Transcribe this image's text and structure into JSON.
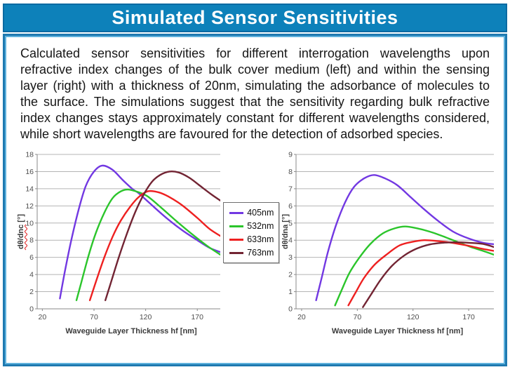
{
  "title_bar": {
    "title": "Simulated Sensor Sensitivities"
  },
  "description": "Calculated sensor sensitivities for different interrogation wavelengths upon refractive index changes of the bulk cover medium (left) and within the sensing layer (right) with a thickness of 20nm, simulating the adsorbance of molecules to the surface. The simulations suggest that the sensitivity regarding bulk refractive index changes stays approximately constant for different wavelengths considered, while short wavelengths are favoured for the detection of adsorbed species.",
  "colors": {
    "title_bar_blue": "#0d81ba",
    "frame_blue": "#1e79b0",
    "purple_405": "#7238e2",
    "green_532": "#2bc52b",
    "red_633": "#ee2020",
    "darkred_763": "#722433",
    "gridline_gray": "#b4b4b4",
    "axis_gray": "#8a8a8a"
  },
  "legend": {
    "items": [
      {
        "label": "405nm",
        "color": "#7238e2"
      },
      {
        "label": "532nm",
        "color": "#2bc52b"
      },
      {
        "label": "633nm",
        "color": "#ee2020"
      },
      {
        "label": "763nm",
        "color": "#722433"
      }
    ]
  },
  "chart_data": [
    {
      "type": "line",
      "position": "left",
      "title": "",
      "xlabel": "Waveguide Layer Thickness hf [nm]",
      "ylabel": "dθ/dnc [°]",
      "ylabel_decoration": "red-wavy-underline",
      "xlim": [
        15,
        197
      ],
      "ylim": [
        0,
        18
      ],
      "ytick_step": 2,
      "xticks": [
        20,
        70,
        120,
        170
      ],
      "grid": true,
      "legend_position": "between-charts",
      "series": [
        {
          "name": "405nm",
          "color": "#7238e2",
          "points": [
            [
              37,
              1.2
            ],
            [
              42,
              4.5
            ],
            [
              48,
              8.0
            ],
            [
              55,
              11.5
            ],
            [
              62,
              14.3
            ],
            [
              70,
              16.0
            ],
            [
              78,
              16.7
            ],
            [
              88,
              16.2
            ],
            [
              98,
              15.0
            ],
            [
              108,
              13.9
            ],
            [
              113,
              13.5
            ],
            [
              125,
              12.2
            ],
            [
              140,
              10.6
            ],
            [
              155,
              9.2
            ],
            [
              170,
              8.0
            ],
            [
              182,
              7.1
            ],
            [
              195,
              6.5
            ]
          ]
        },
        {
          "name": "532nm",
          "color": "#2bc52b",
          "points": [
            [
              53,
              1.0
            ],
            [
              58,
              3.2
            ],
            [
              65,
              6.3
            ],
            [
              72,
              8.9
            ],
            [
              80,
              11.2
            ],
            [
              88,
              12.9
            ],
            [
              96,
              13.7
            ],
            [
              103,
              13.9
            ],
            [
              113,
              13.6
            ],
            [
              122,
              13.1
            ],
            [
              135,
              11.8
            ],
            [
              150,
              10.2
            ],
            [
              165,
              8.7
            ],
            [
              180,
              7.3
            ],
            [
              195,
              6.1
            ]
          ]
        },
        {
          "name": "633nm",
          "color": "#ee2020",
          "points": [
            [
              66,
              1.0
            ],
            [
              72,
              3.2
            ],
            [
              80,
              6.0
            ],
            [
              88,
              8.4
            ],
            [
              96,
              10.3
            ],
            [
              105,
              11.9
            ],
            [
              113,
              13.0
            ],
            [
              122,
              13.7
            ],
            [
              132,
              13.6
            ],
            [
              142,
              13.1
            ],
            [
              155,
              12.1
            ],
            [
              170,
              10.6
            ],
            [
              182,
              9.3
            ],
            [
              195,
              8.3
            ]
          ]
        },
        {
          "name": "763nm",
          "color": "#722433",
          "points": [
            [
              81,
              1.0
            ],
            [
              87,
              3.3
            ],
            [
              94,
              6.0
            ],
            [
              102,
              8.8
            ],
            [
              110,
              11.3
            ],
            [
              118,
              13.3
            ],
            [
              126,
              14.8
            ],
            [
              134,
              15.6
            ],
            [
              143,
              16.0
            ],
            [
              152,
              15.9
            ],
            [
              162,
              15.3
            ],
            [
              172,
              14.4
            ],
            [
              184,
              13.3
            ],
            [
              195,
              12.4
            ]
          ]
        }
      ]
    },
    {
      "type": "line",
      "position": "right",
      "title": "",
      "xlabel": "Waveguide Layer Thickness hf [nm]",
      "ylabel": "dθ/dna [°]",
      "xlim": [
        15,
        197
      ],
      "ylim": [
        0,
        9
      ],
      "ytick_step": 1,
      "xticks": [
        20,
        70,
        120,
        170
      ],
      "grid": true,
      "series": [
        {
          "name": "405nm",
          "color": "#7238e2",
          "points": [
            [
              33,
              0.5
            ],
            [
              38,
              1.8
            ],
            [
              44,
              3.4
            ],
            [
              51,
              4.9
            ],
            [
              59,
              6.2
            ],
            [
              67,
              7.1
            ],
            [
              76,
              7.6
            ],
            [
              85,
              7.8
            ],
            [
              95,
              7.6
            ],
            [
              106,
              7.2
            ],
            [
              118,
              6.5
            ],
            [
              130,
              5.8
            ],
            [
              143,
              5.1
            ],
            [
              156,
              4.5
            ],
            [
              170,
              4.1
            ],
            [
              183,
              3.85
            ],
            [
              195,
              3.75
            ]
          ]
        },
        {
          "name": "532nm",
          "color": "#2bc52b",
          "points": [
            [
              50,
              0.2
            ],
            [
              56,
              1.1
            ],
            [
              63,
              2.1
            ],
            [
              72,
              3.0
            ],
            [
              82,
              3.8
            ],
            [
              93,
              4.4
            ],
            [
              104,
              4.7
            ],
            [
              113,
              4.8
            ],
            [
              123,
              4.7
            ],
            [
              135,
              4.5
            ],
            [
              148,
              4.2
            ],
            [
              160,
              3.9
            ],
            [
              172,
              3.6
            ],
            [
              184,
              3.35
            ],
            [
              195,
              3.1
            ]
          ]
        },
        {
          "name": "633nm",
          "color": "#ee2020",
          "points": [
            [
              62,
              0.2
            ],
            [
              68,
              0.9
            ],
            [
              76,
              1.8
            ],
            [
              86,
              2.6
            ],
            [
              97,
              3.2
            ],
            [
              108,
              3.7
            ],
            [
              119,
              3.9
            ],
            [
              130,
              4.0
            ],
            [
              142,
              3.95
            ],
            [
              155,
              3.85
            ],
            [
              168,
              3.7
            ],
            [
              182,
              3.5
            ],
            [
              195,
              3.35
            ]
          ]
        },
        {
          "name": "763nm",
          "color": "#722433",
          "points": [
            [
              75,
              0.1
            ],
            [
              82,
              0.8
            ],
            [
              91,
              1.7
            ],
            [
              101,
              2.5
            ],
            [
              112,
              3.1
            ],
            [
              123,
              3.5
            ],
            [
              135,
              3.75
            ],
            [
              147,
              3.85
            ],
            [
              158,
              3.88
            ],
            [
              170,
              3.85
            ],
            [
              183,
              3.78
            ],
            [
              195,
              3.55
            ]
          ]
        }
      ]
    }
  ]
}
